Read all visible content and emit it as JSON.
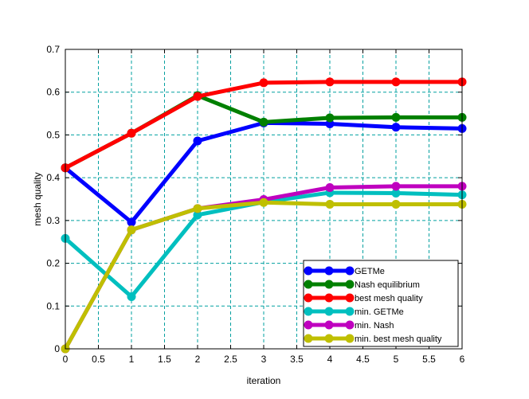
{
  "chart_data": {
    "type": "line",
    "title": "",
    "xlabel": "iteration",
    "ylabel": "mesh quality",
    "xlim": [
      0,
      6
    ],
    "ylim": [
      0,
      0.7
    ],
    "xticks": [
      "0",
      "0.5",
      "1",
      "1.5",
      "2",
      "2.5",
      "3",
      "3.5",
      "4",
      "4.5",
      "5",
      "5.5",
      "6"
    ],
    "yticks": [
      "0",
      "0.1",
      "0.2",
      "0.3",
      "0.4",
      "0.5",
      "0.6",
      "0.7"
    ],
    "grid": true,
    "legend_position": "bottom-right",
    "x": [
      0,
      1,
      2,
      3,
      4,
      5,
      6
    ],
    "series": [
      {
        "name": "GETMe",
        "color": "#0000ff",
        "values": [
          0.423,
          0.296,
          0.486,
          0.528,
          0.526,
          0.518,
          0.515
        ]
      },
      {
        "name": "Nash equilibrium",
        "color": "#008000",
        "values": [
          0.423,
          0.504,
          0.592,
          0.53,
          0.54,
          0.541,
          0.541
        ]
      },
      {
        "name": "best mesh quality",
        "color": "#ff0000",
        "values": [
          0.423,
          0.504,
          0.59,
          0.622,
          0.624,
          0.624,
          0.624
        ]
      },
      {
        "name": "min. GETMe",
        "color": "#00bfbf",
        "values": [
          0.258,
          0.122,
          0.313,
          0.343,
          0.365,
          0.364,
          0.36
        ]
      },
      {
        "name": "min. Nash",
        "color": "#bf00bf",
        "values": [
          0.0,
          0.278,
          0.328,
          0.349,
          0.377,
          0.38,
          0.38
        ]
      },
      {
        "name": "min. best mesh quality",
        "color": "#bfbf00",
        "values": [
          0.0,
          0.278,
          0.328,
          0.342,
          0.338,
          0.338,
          0.338
        ]
      }
    ]
  }
}
